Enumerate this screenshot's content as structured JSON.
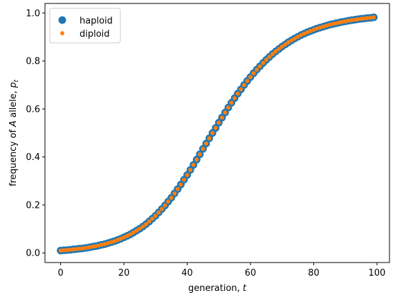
{
  "chart_data": {
    "type": "scatter",
    "title": "",
    "xlabel_main": "generation, ",
    "xlabel_var": "t",
    "ylabel_main": "frequency of ",
    "ylabel_var": "A",
    "ylabel_mid": " allele, ",
    "ylabel_sym": "p",
    "ylabel_sub": "t",
    "xlim": [
      -4.95,
      103.95
    ],
    "ylim": [
      -0.0399,
      1.0398
    ],
    "xticks": [
      0,
      20,
      40,
      60,
      80,
      100
    ],
    "xtick_labels": [
      "0",
      "20",
      "40",
      "60",
      "80",
      "100"
    ],
    "yticks": [
      0.0,
      0.2,
      0.4,
      0.6,
      0.8,
      1.0
    ],
    "ytick_labels": [
      "0.0",
      "0.2",
      "0.4",
      "0.6",
      "0.8",
      "1.0"
    ],
    "grid": false,
    "legend_position": "top-left",
    "series": [
      {
        "name": "haploid",
        "color": "#1f77b4",
        "marker": "circle-large",
        "x": [
          0,
          1,
          2,
          3,
          4,
          5,
          6,
          7,
          8,
          9,
          10,
          11,
          12,
          13,
          14,
          15,
          16,
          17,
          18,
          19,
          20,
          21,
          22,
          23,
          24,
          25,
          26,
          27,
          28,
          29,
          30,
          31,
          32,
          33,
          34,
          35,
          36,
          37,
          38,
          39,
          40,
          41,
          42,
          43,
          44,
          45,
          46,
          47,
          48,
          49,
          50,
          51,
          52,
          53,
          54,
          55,
          56,
          57,
          58,
          59,
          60,
          61,
          62,
          63,
          64,
          65,
          66,
          67,
          68,
          69,
          70,
          71,
          72,
          73,
          74,
          75,
          76,
          77,
          78,
          79,
          80,
          81,
          82,
          83,
          84,
          85,
          86,
          87,
          88,
          89,
          90,
          91,
          92,
          93,
          94,
          95,
          96,
          97,
          98,
          99
        ],
        "y": [
          0.01,
          0.011,
          0.012,
          0.013,
          0.015,
          0.016,
          0.018,
          0.019,
          0.021,
          0.023,
          0.026,
          0.028,
          0.031,
          0.034,
          0.037,
          0.041,
          0.045,
          0.049,
          0.054,
          0.059,
          0.065,
          0.071,
          0.077,
          0.085,
          0.093,
          0.101,
          0.11,
          0.12,
          0.131,
          0.143,
          0.155,
          0.169,
          0.183,
          0.198,
          0.214,
          0.23,
          0.248,
          0.266,
          0.285,
          0.305,
          0.325,
          0.346,
          0.367,
          0.389,
          0.411,
          0.434,
          0.456,
          0.478,
          0.5,
          0.521,
          0.543,
          0.564,
          0.585,
          0.606,
          0.626,
          0.645,
          0.664,
          0.682,
          0.7,
          0.717,
          0.733,
          0.749,
          0.764,
          0.778,
          0.792,
          0.805,
          0.817,
          0.829,
          0.84,
          0.85,
          0.86,
          0.869,
          0.878,
          0.886,
          0.894,
          0.901,
          0.908,
          0.914,
          0.92,
          0.925,
          0.93,
          0.935,
          0.939,
          0.943,
          0.947,
          0.951,
          0.954,
          0.957,
          0.96,
          0.963,
          0.965,
          0.968,
          0.97,
          0.972,
          0.974,
          0.976,
          0.977,
          0.979,
          0.98,
          0.982
        ]
      },
      {
        "name": "diploid",
        "color": "#ff7f0e",
        "marker": "circle-small",
        "x": [
          0,
          1,
          2,
          3,
          4,
          5,
          6,
          7,
          8,
          9,
          10,
          11,
          12,
          13,
          14,
          15,
          16,
          17,
          18,
          19,
          20,
          21,
          22,
          23,
          24,
          25,
          26,
          27,
          28,
          29,
          30,
          31,
          32,
          33,
          34,
          35,
          36,
          37,
          38,
          39,
          40,
          41,
          42,
          43,
          44,
          45,
          46,
          47,
          48,
          49,
          50,
          51,
          52,
          53,
          54,
          55,
          56,
          57,
          58,
          59,
          60,
          61,
          62,
          63,
          64,
          65,
          66,
          67,
          68,
          69,
          70,
          71,
          72,
          73,
          74,
          75,
          76,
          77,
          78,
          79,
          80,
          81,
          82,
          83,
          84,
          85,
          86,
          87,
          88,
          89,
          90,
          91,
          92,
          93,
          94,
          95,
          96,
          97,
          98,
          99
        ],
        "y": [
          0.01,
          0.011,
          0.012,
          0.013,
          0.015,
          0.016,
          0.018,
          0.019,
          0.021,
          0.023,
          0.026,
          0.028,
          0.031,
          0.034,
          0.037,
          0.041,
          0.045,
          0.049,
          0.054,
          0.059,
          0.065,
          0.071,
          0.077,
          0.085,
          0.093,
          0.101,
          0.11,
          0.12,
          0.131,
          0.143,
          0.155,
          0.169,
          0.183,
          0.198,
          0.214,
          0.23,
          0.248,
          0.266,
          0.285,
          0.305,
          0.325,
          0.346,
          0.367,
          0.389,
          0.411,
          0.434,
          0.456,
          0.478,
          0.5,
          0.521,
          0.543,
          0.564,
          0.585,
          0.606,
          0.626,
          0.645,
          0.664,
          0.682,
          0.7,
          0.717,
          0.733,
          0.749,
          0.764,
          0.778,
          0.792,
          0.805,
          0.817,
          0.829,
          0.84,
          0.85,
          0.86,
          0.869,
          0.878,
          0.886,
          0.894,
          0.901,
          0.908,
          0.914,
          0.92,
          0.925,
          0.93,
          0.935,
          0.939,
          0.943,
          0.947,
          0.951,
          0.954,
          0.957,
          0.96,
          0.963,
          0.965,
          0.968,
          0.97,
          0.972,
          0.974,
          0.976,
          0.977,
          0.979,
          0.98,
          0.982
        ]
      }
    ]
  }
}
